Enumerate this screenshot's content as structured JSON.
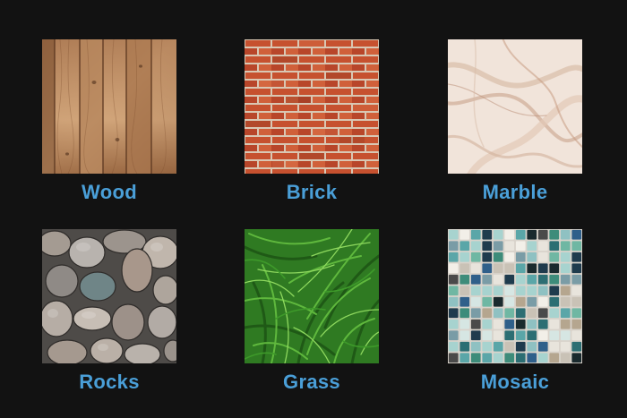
{
  "textures": [
    {
      "label": "Wood",
      "icon": "wood-planks-texture"
    },
    {
      "label": "Brick",
      "icon": "brick-wall-texture"
    },
    {
      "label": "Marble",
      "icon": "marble-texture"
    },
    {
      "label": "Rocks",
      "icon": "river-rocks-texture"
    },
    {
      "label": "Grass",
      "icon": "grass-texture"
    },
    {
      "label": "Mosaic",
      "icon": "mosaic-tile-texture"
    }
  ],
  "colors": {
    "background": "#121212",
    "label": "#4a9fd8"
  }
}
